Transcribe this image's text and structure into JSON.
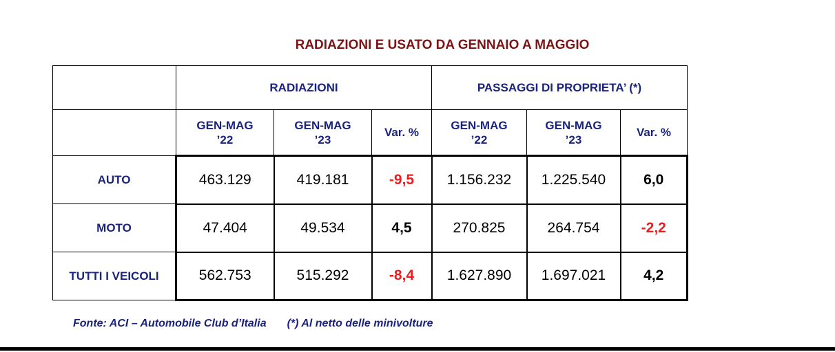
{
  "title": "RADIAZIONI E USATO DA GENNAIO A MAGGIO",
  "table": {
    "group_headers": [
      "RADIAZIONI",
      "PASSAGGI DI PROPRIETA’ (*)"
    ],
    "sub_headers": [
      {
        "line1": "GEN-MAG",
        "line2": "’22"
      },
      {
        "line1": "GEN-MAG",
        "line2": "’23"
      },
      {
        "line1": "Var. %",
        "line2": ""
      },
      {
        "line1": "GEN-MAG",
        "line2": "’22"
      },
      {
        "line1": "GEN-MAG",
        "line2": "’23"
      },
      {
        "line1": "Var. %",
        "line2": ""
      }
    ],
    "rows": [
      {
        "label": "AUTO",
        "rad_22": "463.129",
        "rad_23": "419.181",
        "rad_var": "-9,5",
        "pp_22": "1.156.232",
        "pp_23": "1.225.540",
        "pp_var": "6,0"
      },
      {
        "label": "MOTO",
        "rad_22": "47.404",
        "rad_23": "49.534",
        "rad_var": "4,5",
        "pp_22": "270.825",
        "pp_23": "264.754",
        "pp_var": "-2,2"
      },
      {
        "label": "TUTTI I VEICOLI",
        "rad_22": "562.753",
        "rad_23": "515.292",
        "rad_var": "-8,4",
        "pp_22": "1.627.890",
        "pp_23": "1.697.021",
        "pp_var": "4,2"
      }
    ]
  },
  "footer": {
    "source": "Fonte: ACI – Automobile Club d’Italia",
    "note": "(*) Al netto delle minivolture"
  },
  "colors": {
    "title": "#7b1414",
    "header_text": "#1a237e",
    "negative": "#ee1c1c",
    "positive": "#000000"
  }
}
